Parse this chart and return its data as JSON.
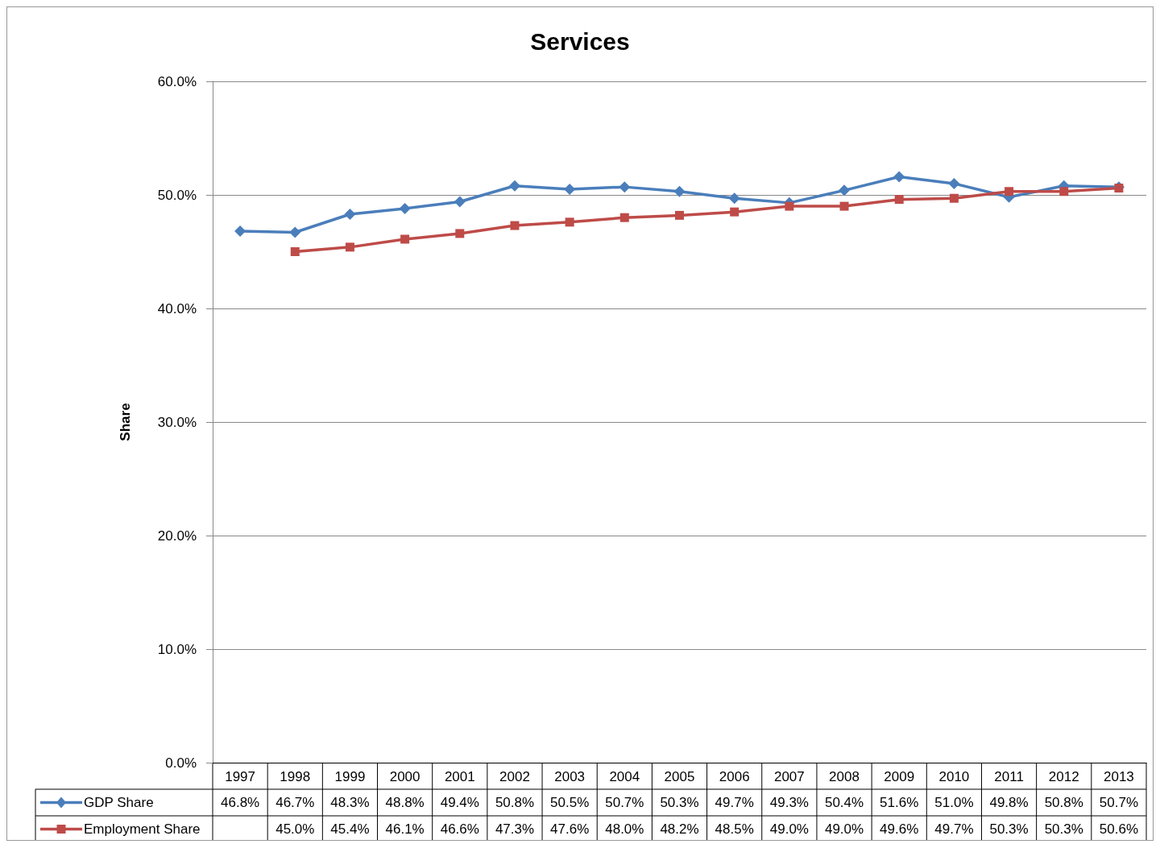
{
  "chart_data": {
    "type": "line",
    "title": "Services",
    "ylabel": "Share",
    "categories": [
      "1997",
      "1998",
      "1999",
      "2000",
      "2001",
      "2002",
      "2003",
      "2004",
      "2005",
      "2006",
      "2007",
      "2008",
      "2009",
      "2010",
      "2011",
      "2012",
      "2013"
    ],
    "series": [
      {
        "name": "GDP Share",
        "color": "#4a7ebb",
        "marker": "diamond",
        "values": [
          46.8,
          46.7,
          48.3,
          48.8,
          49.4,
          50.8,
          50.5,
          50.7,
          50.3,
          49.7,
          49.3,
          50.4,
          51.6,
          51.0,
          49.8,
          50.8,
          50.7
        ],
        "value_labels": [
          "46.8%",
          "46.7%",
          "48.3%",
          "48.8%",
          "49.4%",
          "50.8%",
          "50.5%",
          "50.7%",
          "50.3%",
          "49.7%",
          "49.3%",
          "50.4%",
          "51.6%",
          "51.0%",
          "49.8%",
          "50.8%",
          "50.7%"
        ]
      },
      {
        "name": "Employment Share",
        "color": "#be4b48",
        "marker": "square",
        "values": [
          null,
          45.0,
          45.4,
          46.1,
          46.6,
          47.3,
          47.6,
          48.0,
          48.2,
          48.5,
          49.0,
          49.0,
          49.6,
          49.7,
          50.3,
          50.3,
          50.6
        ],
        "value_labels": [
          null,
          "45.0%",
          "45.4%",
          "46.1%",
          "46.6%",
          "47.3%",
          "47.6%",
          "48.0%",
          "48.2%",
          "48.5%",
          "49.0%",
          "49.0%",
          "49.6%",
          "49.7%",
          "50.3%",
          "50.3%",
          "50.6%"
        ]
      }
    ],
    "ylim": [
      0,
      60
    ],
    "yticks": [
      {
        "value": 0,
        "label": "0.0%"
      },
      {
        "value": 10,
        "label": "10.0%"
      },
      {
        "value": 20,
        "label": "20.0%"
      },
      {
        "value": 30,
        "label": "30.0%"
      },
      {
        "value": 40,
        "label": "40.0%"
      },
      {
        "value": 50,
        "label": "50.0%"
      },
      {
        "value": 60,
        "label": "60.0%"
      }
    ],
    "grid": "y",
    "legend": "bottom left",
    "line_style": "solid"
  }
}
